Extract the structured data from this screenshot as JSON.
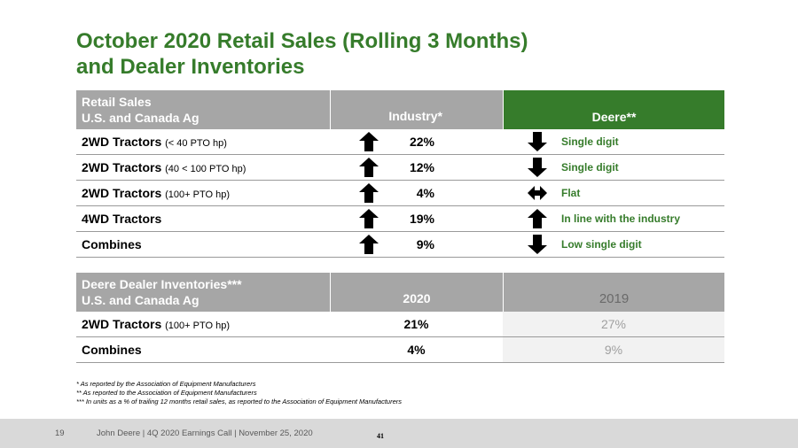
{
  "title": {
    "line1": "October 2020 Retail Sales (Rolling 3 Months)",
    "line2": "and Dealer Inventories"
  },
  "sales_table": {
    "header": {
      "col1_line1": "Retail Sales",
      "col1_line2": "U.S. and Canada Ag",
      "industry": "Industry*",
      "deere": "Deere**"
    },
    "rows": [
      {
        "label": "2WD Tractors",
        "sub": "(< 40 PTO hp)",
        "industry_arrow": "up-arrow",
        "industry": "22%",
        "deere_arrow": "down-arrow",
        "deere": "Single digit"
      },
      {
        "label": "2WD Tractors",
        "sub": "(40 < 100 PTO hp)",
        "industry_arrow": "up-arrow",
        "industry": "12%",
        "deere_arrow": "down-arrow",
        "deere": "Single digit"
      },
      {
        "label": "2WD Tractors",
        "sub": "(100+ PTO hp)",
        "industry_arrow": "up-arrow",
        "industry": "4%",
        "deere_arrow": "left-right-arrow",
        "deere": "Flat"
      },
      {
        "label": "4WD Tractors",
        "sub": "",
        "industry_arrow": "up-arrow",
        "industry": "19%",
        "deere_arrow": "up-arrow",
        "deere": "In line with the industry"
      },
      {
        "label": "Combines",
        "sub": "",
        "industry_arrow": "up-arrow",
        "industry": "9%",
        "deere_arrow": "down-arrow",
        "deere": "Low single digit"
      }
    ]
  },
  "inventory_table": {
    "header": {
      "col1_line1": "Deere Dealer Inventories***",
      "col1_line2": "U.S. and Canada Ag",
      "year_current": "2020",
      "year_prior": "2019"
    },
    "rows": [
      {
        "label": "2WD Tractors",
        "sub": "(100+ PTO hp)",
        "current": "21%",
        "prior": "27%"
      },
      {
        "label": "Combines",
        "sub": "",
        "current": "4%",
        "prior": "9%"
      }
    ]
  },
  "notes": [
    "* As reported by the Association of Equipment Manufacturers",
    "** As reported to the Association of Equipment Manufacturers",
    "*** In units as a % of trailing 12 months retail sales, as reported to the Association of Equipment Manufacturers"
  ],
  "footer": {
    "page": "19",
    "text": "John Deere | 4Q 2020 Earnings Call | November 25, 2020",
    "number": "41"
  },
  "colors": {
    "brand_green": "#367c2b",
    "header_grey": "#a6a6a6"
  }
}
